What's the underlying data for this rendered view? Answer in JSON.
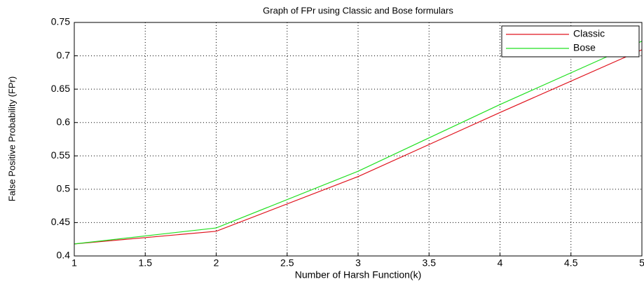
{
  "chart_data": {
    "type": "line",
    "title": "Graph of FPr using Classic and Bose formulars",
    "x_label": "Number of Harsh Function(k)",
    "y_label": "False Positive Probability (FPr)",
    "x": [
      1,
      2,
      3,
      4,
      5
    ],
    "series": [
      {
        "name": "Classic",
        "color": "#e0141e",
        "values": [
          0.418,
          0.437,
          0.519,
          0.615,
          0.709
        ]
      },
      {
        "name": "Bose",
        "color": "#22e022",
        "values": [
          0.418,
          0.442,
          0.527,
          0.627,
          0.722
        ]
      }
    ],
    "xlim": [
      1,
      5
    ],
    "xticks": [
      1,
      1.5,
      2,
      2.5,
      3,
      3.5,
      4,
      4.5,
      5
    ],
    "ylim": [
      0.4,
      0.75
    ],
    "yticks": [
      0.4,
      0.45,
      0.5,
      0.55,
      0.6,
      0.65,
      0.7,
      0.75
    ],
    "grid": true,
    "legend": "upper right"
  }
}
